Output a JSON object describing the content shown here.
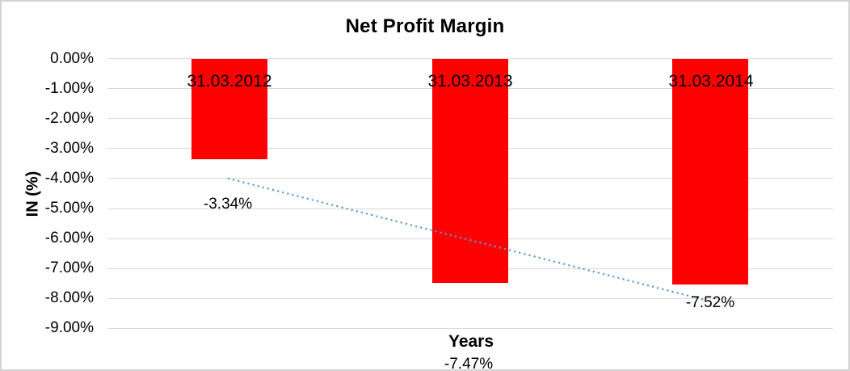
{
  "chart_data": {
    "type": "bar",
    "title": "Net Profit Margin",
    "xlabel": "Years",
    "ylabel": "IN (%)",
    "categories": [
      "31.03.2012",
      "31.03.2013",
      "31.03.2014"
    ],
    "series": [
      {
        "name": "Net Profit Margin",
        "values": [
          -3.34,
          -7.47,
          -7.52
        ]
      }
    ],
    "data_labels": [
      "-3.34%",
      "-7.47%",
      "-7.52%"
    ],
    "y_ticks": [
      "0.00%",
      "-1.00%",
      "-2.00%",
      "-3.00%",
      "-4.00%",
      "-5.00%",
      "-6.00%",
      "-7.00%",
      "-8.00%",
      "-9.00%"
    ],
    "ylim": [
      -9,
      0
    ],
    "y_tick_step": 1,
    "grid": true,
    "legend": "none",
    "colors": {
      "bar": "#FF0000",
      "trendline": "#5B9BD5",
      "gridline": "#D9D9D9",
      "text": "#000000"
    },
    "trendline": {
      "style": "dotted",
      "color": "#5B9BD5",
      "approx_values": [
        -4.0,
        -8.05
      ]
    }
  }
}
